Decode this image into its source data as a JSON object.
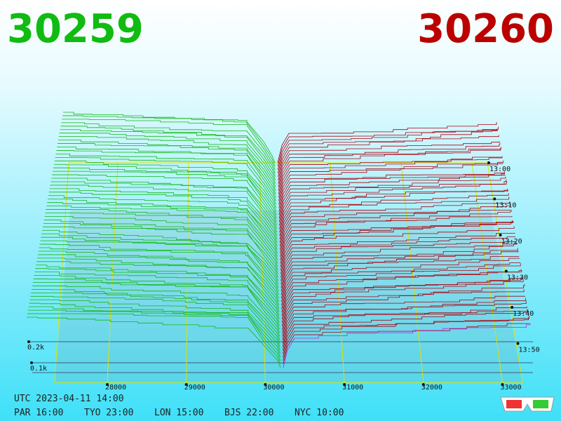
{
  "header": {
    "bid": "30259",
    "ask": "30260"
  },
  "axes": {
    "price_labels": [
      "28000",
      "29000",
      "30000",
      "31000",
      "32000",
      "33000"
    ],
    "time_labels": [
      "13:00",
      "13:10",
      "13:20",
      "13:30",
      "13:40",
      "13:50"
    ],
    "depth_labels": [
      "0.2k",
      "0.1k"
    ]
  },
  "footer": {
    "utc": "UTC 2023-04-11 14:00",
    "clocks": [
      "PAR 16:00",
      "TYO 23:00",
      "LON 15:00",
      "BJS 22:00",
      "NYC 10:00"
    ]
  }
}
